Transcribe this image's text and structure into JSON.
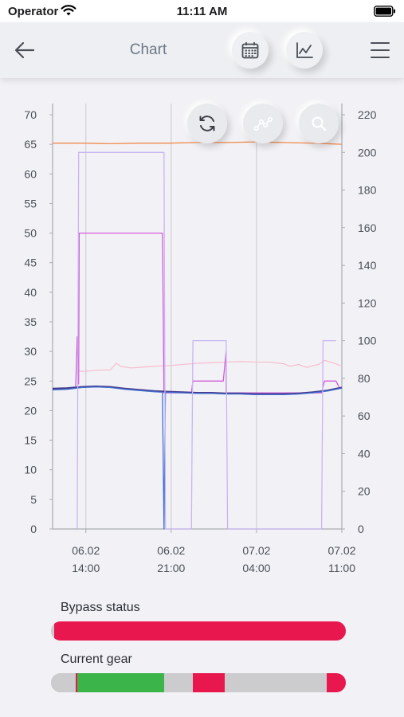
{
  "status_bar": {
    "carrier": "Operator",
    "time": "11:11 AM"
  },
  "nav": {
    "title": "Chart",
    "icons": [
      "back-arrow-icon",
      "calendar-icon",
      "line-chart-icon",
      "hamburger-menu-icon"
    ]
  },
  "chart_actions": [
    "refresh-icon",
    "connect-points-icon",
    "zoom-icon"
  ],
  "chart_data": {
    "type": "line",
    "left_axis": {
      "ylim": [
        0,
        70
      ],
      "ticks": [
        "0",
        "5",
        "10",
        "15",
        "20",
        "25",
        "30",
        "35",
        "40",
        "45",
        "50",
        "55",
        "60",
        "65",
        "70"
      ]
    },
    "right_axis": {
      "ylim": [
        0,
        220
      ],
      "ticks": [
        "0",
        "20",
        "40",
        "60",
        "80",
        "100",
        "120",
        "140",
        "160",
        "180",
        "200",
        "220"
      ]
    },
    "x_ticks": [
      {
        "t": 0.115,
        "date": "06.02",
        "hour": "14:00"
      },
      {
        "t": 0.41,
        "date": "06.02",
        "hour": "21:00"
      },
      {
        "t": 0.705,
        "date": "07.02",
        "hour": "04:00"
      },
      {
        "t": 1.0,
        "date": "07.02",
        "hour": "11:00"
      }
    ],
    "colors": {
      "orange": "#f08a4b",
      "pink_light": "#f7bfd0",
      "magenta": "#d45ad8",
      "lavender": "#c7b5f2",
      "navy": "#463a8c",
      "blue": "#3f6fd0",
      "grid": "#c7c9ce",
      "axis": "#a9abb0"
    },
    "series": [
      {
        "axis": "left",
        "color": "#f08a4b",
        "points": [
          [
            0,
            65.2
          ],
          [
            0.1,
            65.2
          ],
          [
            0.2,
            65.1
          ],
          [
            0.3,
            65.2
          ],
          [
            0.4,
            65.2
          ],
          [
            0.5,
            65.3
          ],
          [
            0.6,
            65.3
          ],
          [
            0.7,
            65.4
          ],
          [
            0.8,
            65.3
          ],
          [
            0.9,
            65.2
          ],
          [
            1.0,
            65.0
          ]
        ]
      },
      {
        "axis": "left",
        "color": "#f7bfd0",
        "points": [
          [
            0.085,
            26.5
          ],
          [
            0.09,
            26.8
          ],
          [
            0.1,
            26.6
          ],
          [
            0.15,
            26.8
          ],
          [
            0.2,
            26.9
          ],
          [
            0.22,
            28.0
          ],
          [
            0.235,
            27.5
          ],
          [
            0.27,
            27.2
          ],
          [
            0.3,
            27.3
          ],
          [
            0.35,
            27.5
          ],
          [
            0.4,
            27.6
          ],
          [
            0.45,
            27.8
          ],
          [
            0.5,
            28.0
          ],
          [
            0.55,
            28.1
          ],
          [
            0.6,
            28.2
          ],
          [
            0.65,
            28.3
          ],
          [
            0.7,
            28.2
          ],
          [
            0.75,
            28.2
          ],
          [
            0.8,
            27.9
          ],
          [
            0.82,
            27.5
          ],
          [
            0.85,
            27.8
          ],
          [
            0.88,
            27.3
          ],
          [
            0.9,
            27.6
          ],
          [
            0.92,
            27.8
          ],
          [
            0.94,
            28.5
          ],
          [
            0.96,
            28.2
          ],
          [
            0.98,
            27.9
          ],
          [
            1.0,
            27.5
          ]
        ]
      },
      {
        "axis": "left",
        "color": "#d45ad8",
        "points": [
          [
            0.08,
            24.0
          ],
          [
            0.085,
            32.5
          ],
          [
            0.09,
            24.5
          ],
          [
            0.092,
            50.0
          ],
          [
            0.38,
            50.0
          ],
          [
            0.385,
            23.0
          ],
          [
            0.48,
            23.0
          ],
          [
            0.485,
            25.0
          ],
          [
            0.59,
            25.0
          ],
          [
            0.6,
            30.0
          ],
          [
            0.6,
            23.0
          ],
          [
            0.93,
            23.0
          ],
          [
            0.94,
            25.0
          ],
          [
            0.98,
            25.0
          ],
          [
            0.99,
            24.0
          ]
        ]
      },
      {
        "axis": "left",
        "color": "#463a8c",
        "width": 2.2,
        "points": [
          [
            0,
            23.7
          ],
          [
            0.05,
            23.8
          ],
          [
            0.1,
            24.0
          ],
          [
            0.15,
            24.1
          ],
          [
            0.2,
            24.0
          ],
          [
            0.25,
            23.7
          ],
          [
            0.3,
            23.5
          ],
          [
            0.35,
            23.3
          ],
          [
            0.4,
            23.2
          ],
          [
            0.45,
            23.1
          ],
          [
            0.5,
            23.0
          ],
          [
            0.55,
            23.0
          ],
          [
            0.6,
            22.9
          ],
          [
            0.65,
            22.9
          ],
          [
            0.7,
            22.8
          ],
          [
            0.75,
            22.8
          ],
          [
            0.8,
            22.8
          ],
          [
            0.85,
            22.9
          ],
          [
            0.9,
            23.1
          ],
          [
            0.95,
            23.4
          ],
          [
            1.0,
            23.9
          ]
        ]
      },
      {
        "axis": "left",
        "color": "#3f6fd0",
        "width": 1.3,
        "points": [
          [
            0,
            23.5
          ],
          [
            0.05,
            23.6
          ],
          [
            0.1,
            23.9
          ],
          [
            0.15,
            24.0
          ],
          [
            0.2,
            23.9
          ],
          [
            0.25,
            23.6
          ],
          [
            0.3,
            23.4
          ],
          [
            0.35,
            23.2
          ],
          [
            0.38,
            23.1
          ],
          [
            0.385,
            0
          ],
          [
            0.39,
            23.1
          ],
          [
            0.45,
            23.0
          ],
          [
            0.5,
            22.9
          ],
          [
            0.55,
            22.9
          ],
          [
            0.6,
            22.8
          ],
          [
            0.65,
            22.8
          ],
          [
            0.7,
            22.7
          ],
          [
            0.75,
            22.7
          ],
          [
            0.8,
            22.7
          ],
          [
            0.85,
            22.8
          ],
          [
            0.9,
            23.0
          ],
          [
            0.95,
            23.3
          ],
          [
            1.0,
            23.8
          ]
        ]
      },
      {
        "axis": "right",
        "color": "#c7b5f2",
        "points": [
          [
            0.085,
            0
          ],
          [
            0.09,
            200
          ],
          [
            0.385,
            200
          ],
          [
            0.39,
            0
          ],
          [
            0.48,
            0
          ],
          [
            0.485,
            100
          ],
          [
            0.6,
            100
          ],
          [
            0.605,
            0
          ],
          [
            0.93,
            0
          ],
          [
            0.935,
            100
          ],
          [
            0.98,
            100
          ]
        ]
      }
    ]
  },
  "bypass": {
    "label": "Bypass status",
    "segments": [
      {
        "start": 0.0,
        "end": 0.012,
        "color": "#cccccf"
      },
      {
        "start": 0.012,
        "end": 1.0,
        "color": "#e8184f"
      }
    ]
  },
  "gear": {
    "label": "Current gear",
    "segments": [
      {
        "start": 0.0,
        "end": 0.085,
        "color": "#cccccf"
      },
      {
        "start": 0.085,
        "end": 0.09,
        "color": "#e8184f"
      },
      {
        "start": 0.09,
        "end": 0.385,
        "color": "#3bb54a"
      },
      {
        "start": 0.385,
        "end": 0.48,
        "color": "#cccccf"
      },
      {
        "start": 0.48,
        "end": 0.59,
        "color": "#e8184f"
      },
      {
        "start": 0.59,
        "end": 0.935,
        "color": "#cccccf"
      },
      {
        "start": 0.935,
        "end": 1.0,
        "color": "#e8184f"
      }
    ]
  }
}
